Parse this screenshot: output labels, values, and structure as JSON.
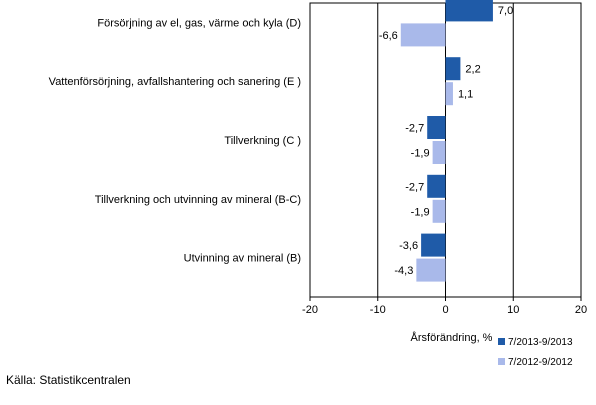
{
  "chart_data": {
    "type": "bar",
    "orientation": "horizontal",
    "categories": [
      "Försörjning av el, gas, värme och kyla (D)",
      "Vattenförsörjning, avfallshantering och sanering (E )",
      "Tillverkning (C )",
      "Tillverkning och utvinning av mineral (B-C)",
      "Utvinning av mineral  (B)"
    ],
    "series": [
      {
        "name": "7/2013-9/2013",
        "color": "#1f5ba8",
        "values": [
          7.0,
          2.2,
          -2.7,
          -2.7,
          -3.6
        ],
        "labels": [
          "7,0",
          "2,2",
          "-2,7",
          "-2,7",
          "-3,6"
        ]
      },
      {
        "name": "7/2012-9/2012",
        "color": "#a9b9ea",
        "values": [
          -6.6,
          1.1,
          -1.9,
          -1.9,
          -4.3
        ],
        "labels": [
          "-6,6",
          "1,1",
          "-1,9",
          "-1,9",
          "-4,3"
        ]
      }
    ],
    "xlabel": "Årsförändring, %",
    "xlim": [
      -20,
      20
    ],
    "xticks": [
      -20,
      -10,
      0,
      10,
      20
    ],
    "xtick_labels": [
      "-20",
      "-10",
      "0",
      "10",
      "20"
    ],
    "grid": "vertical major lines",
    "legend_position": "bottom-right"
  },
  "source": "Källa: Statistikcentralen"
}
